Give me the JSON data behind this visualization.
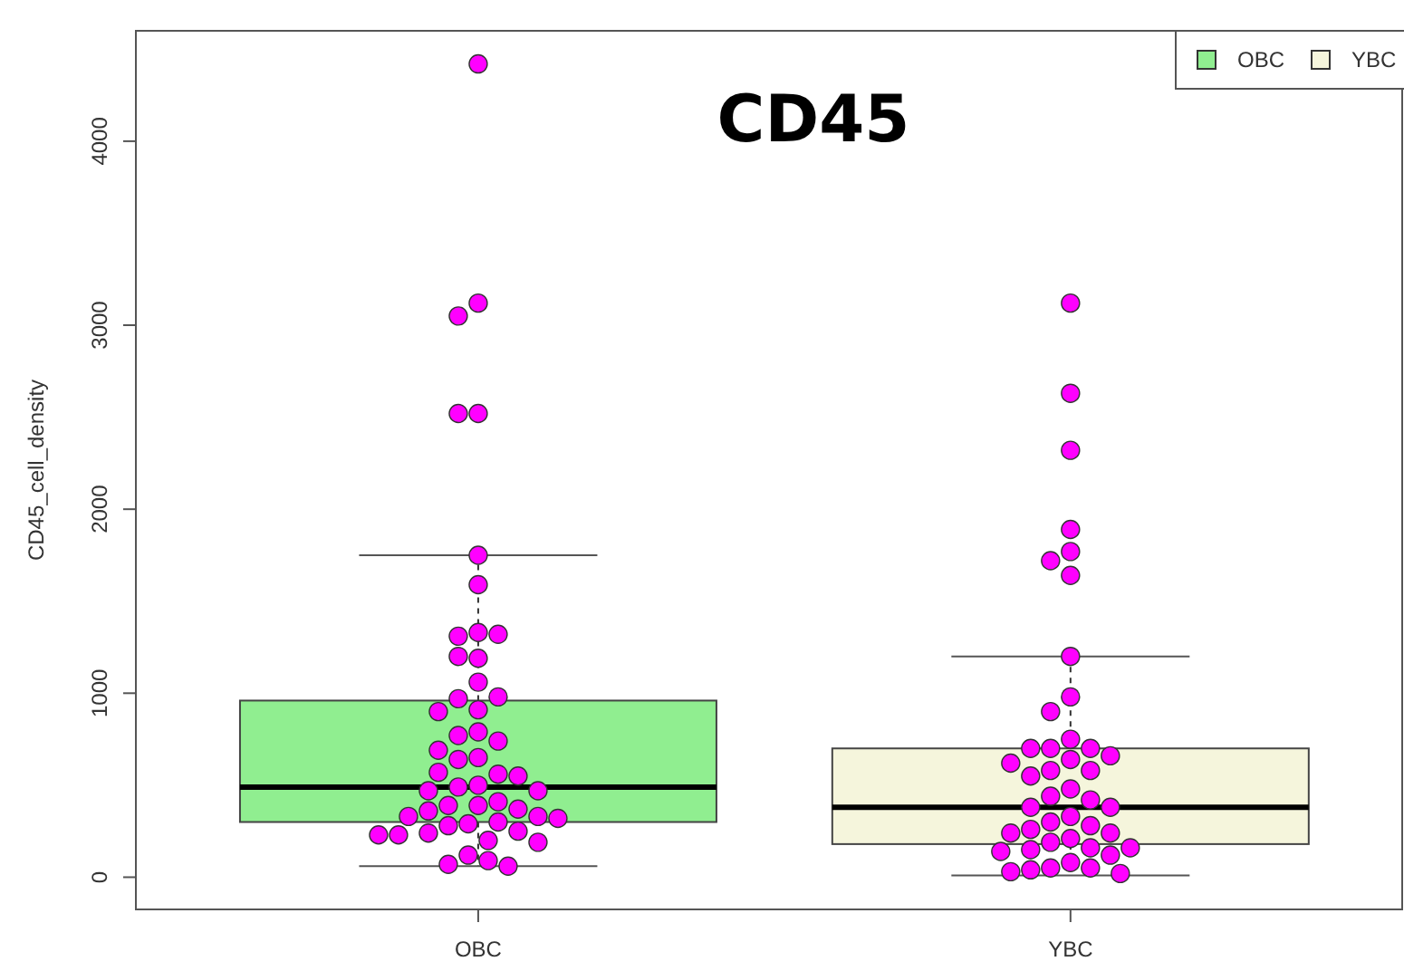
{
  "chart_data": {
    "type": "box",
    "title": "CD45",
    "ylabel": "CD45_cell_density",
    "categories": [
      "OBC",
      "YBC"
    ],
    "series": [
      {
        "name": "OBC",
        "color": "#90ee90",
        "boxes": [
          {
            "low": 60,
            "q1": 300,
            "median": 490,
            "q3": 960,
            "high": 1750
          },
          null
        ]
      },
      {
        "name": "YBC",
        "color": "#f5f5dc",
        "boxes": [
          null,
          {
            "low": 10,
            "q1": 180,
            "median": 380,
            "q3": 700,
            "high": 1200
          }
        ]
      },
      {
        "type": "scatter",
        "color": "#ff00ff",
        "marker": "circle",
        "x": [
          "OBC",
          "OBC",
          "OBC",
          "OBC",
          "OBC",
          "OBC",
          "OBC",
          "OBC",
          "OBC",
          "OBC",
          "OBC",
          "OBC",
          "OBC",
          "OBC",
          "OBC",
          "OBC",
          "OBC",
          "OBC",
          "OBC",
          "OBC",
          "OBC",
          "OBC",
          "OBC",
          "OBC",
          "OBC",
          "OBC",
          "OBC",
          "OBC",
          "OBC",
          "OBC",
          "OBC",
          "OBC",
          "OBC",
          "OBC",
          "OBC",
          "OBC",
          "OBC",
          "OBC",
          "OBC",
          "OBC",
          "OBC",
          "OBC",
          "OBC",
          "OBC",
          "OBC",
          "OBC",
          "OBC",
          "OBC",
          "OBC",
          "OBC",
          "OBC",
          "YBC",
          "YBC",
          "YBC",
          "YBC",
          "YBC",
          "YBC",
          "YBC",
          "YBC",
          "YBC",
          "YBC",
          "YBC",
          "YBC",
          "YBC",
          "YBC",
          "YBC",
          "YBC",
          "YBC",
          "YBC",
          "YBC",
          "YBC",
          "YBC",
          "YBC",
          "YBC",
          "YBC",
          "YBC",
          "YBC",
          "YBC",
          "YBC",
          "YBC",
          "YBC",
          "YBC",
          "YBC",
          "YBC",
          "YBC",
          "YBC",
          "YBC",
          "YBC",
          "YBC",
          "YBC",
          "YBC",
          "YBC",
          "YBC",
          "YBC",
          "YBC"
        ],
        "values": [
          4420,
          3120,
          3050,
          2520,
          2520,
          1750,
          1590,
          1330,
          1310,
          1320,
          1190,
          1200,
          1060,
          970,
          980,
          910,
          900,
          790,
          770,
          740,
          690,
          650,
          640,
          560,
          570,
          550,
          500,
          490,
          470,
          470,
          410,
          390,
          390,
          370,
          360,
          330,
          330,
          320,
          300,
          290,
          280,
          250,
          240,
          230,
          230,
          200,
          190,
          120,
          90,
          70,
          60,
          3120,
          2630,
          2320,
          1890,
          1770,
          1720,
          1640,
          1200,
          980,
          900,
          750,
          700,
          700,
          700,
          660,
          640,
          620,
          580,
          580,
          550,
          480,
          440,
          420,
          380,
          380,
          330,
          300,
          280,
          260,
          240,
          240,
          210,
          190,
          160,
          160,
          150,
          140,
          120,
          80,
          50,
          50,
          40,
          30,
          20
        ]
      }
    ],
    "ylim": [
      -175,
      4600
    ],
    "yticks": [
      0,
      1000,
      2000,
      3000,
      4000
    ],
    "legend": "top right"
  }
}
